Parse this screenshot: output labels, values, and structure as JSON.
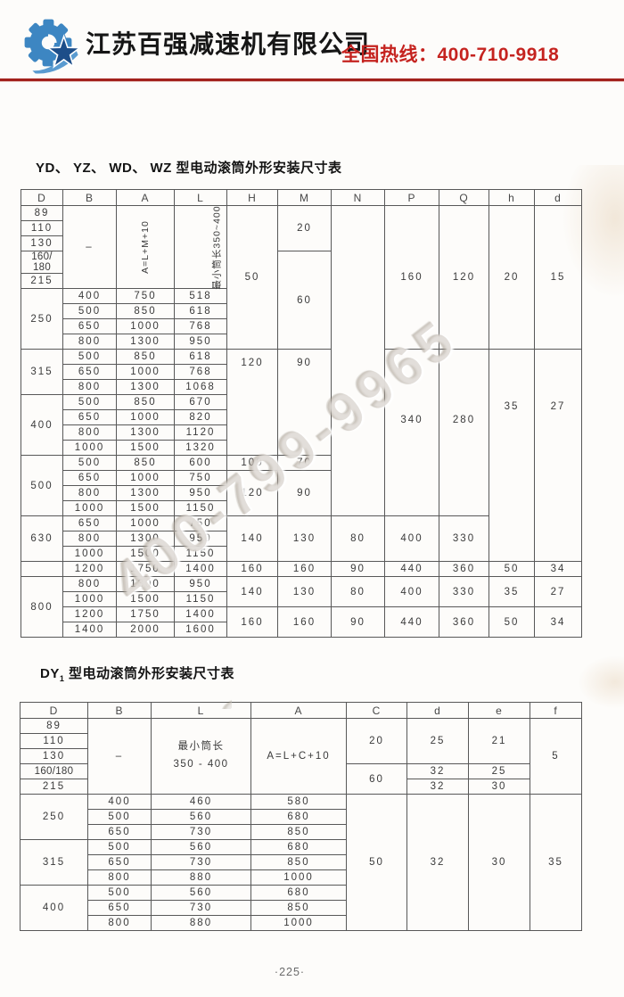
{
  "header": {
    "company_name": "江苏百强减速机有限公司",
    "hotline": "全国热线：400-710-9918",
    "logo": "gear-star-logo"
  },
  "watermark": {
    "text": "400-799-9965"
  },
  "footer": {
    "page_number": "·225·"
  },
  "table1_title": "YD、 YZ、 WD、 WZ  型电动滚筒外形安装尺寸表",
  "table2_title": {
    "prefix": "DY",
    "sub": "1",
    "rest": " 型电动滚筒外形安装尺寸表"
  },
  "table1": {
    "columns": [
      "D",
      "B",
      "A",
      "L",
      "H",
      "M",
      "N",
      "P",
      "Q",
      "h",
      "d"
    ],
    "rows": [
      [
        "89",
        {
          "t": "–",
          "rs": 5
        },
        {
          "t": "A=L+M+10",
          "rs": 5,
          "cls": "rot"
        },
        {
          "t": "最小筒长350~400",
          "rs": 5,
          "cls": "rot"
        },
        {
          "t": "50",
          "rs": 9
        },
        {
          "t": "20",
          "rs": 3
        },
        {
          "t": "",
          "rs": 20
        },
        {
          "t": "160",
          "rs": 9
        },
        {
          "t": "120",
          "rs": 9
        },
        {
          "t": "20",
          "rs": 9
        },
        {
          "t": "15",
          "rs": 9
        }
      ],
      [
        "110"
      ],
      [
        "130"
      ],
      [
        {
          "t": "160/ 180",
          "cls": "tight"
        },
        {
          "t": "60",
          "rs": 6
        }
      ],
      [
        "215"
      ],
      [
        {
          "t": "250",
          "rs": 4
        },
        "400",
        "750",
        "518"
      ],
      [
        "500",
        "850",
        "618"
      ],
      [
        "650",
        "1000",
        "768"
      ],
      [
        "800",
        "1300",
        "950"
      ],
      [
        {
          "t": "315",
          "rs": 3
        },
        "500",
        "850",
        "618",
        {
          "t": "120",
          "rs": 7,
          "cls": "vtop"
        },
        {
          "t": "90",
          "rs": 7,
          "cls": "vtop"
        },
        {
          "t": "340",
          "rs": 11,
          "cls": "vup"
        },
        {
          "t": "280",
          "rs": 11,
          "cls": "vup"
        },
        {
          "t": "35",
          "rs": 14,
          "cls": "vhigh"
        },
        {
          "t": "27",
          "rs": 14,
          "cls": "vhigh"
        }
      ],
      [
        "650",
        "1000",
        "768"
      ],
      [
        "800",
        "1300",
        "1068"
      ],
      [
        {
          "t": "400",
          "rs": 4
        },
        "500",
        "850",
        "670"
      ],
      [
        "650",
        "1000",
        "820"
      ],
      [
        "800",
        "1300",
        "1120"
      ],
      [
        "1000",
        "1500",
        "1320"
      ],
      [
        {
          "t": "500",
          "rs": 4
        },
        "500",
        "850",
        "600",
        "100",
        "70"
      ],
      [
        "650",
        "1000",
        "750",
        {
          "t": "120",
          "rs": 3
        },
        {
          "t": "90",
          "rs": 3
        }
      ],
      [
        "800",
        "1300",
        "950"
      ],
      [
        "1000",
        "1500",
        "1150"
      ],
      [
        {
          "t": "630",
          "rs": 3
        },
        "650",
        "1000",
        "750",
        {
          "t": "140",
          "rs": 3
        },
        {
          "t": "130",
          "rs": 3
        },
        {
          "t": "80",
          "rs": 3
        },
        {
          "t": "400",
          "rs": 3
        },
        {
          "t": "330",
          "rs": 3
        }
      ],
      [
        "800",
        "1300",
        "950"
      ],
      [
        "1000",
        "1500",
        "1150"
      ],
      [
        "",
        "1200",
        "1750",
        "1400",
        "160",
        "160",
        "90",
        "440",
        "360",
        "50",
        "34"
      ],
      [
        {
          "t": "800",
          "rs": 4
        },
        "800",
        "1300",
        "950",
        {
          "t": "140",
          "rs": 2
        },
        {
          "t": "130",
          "rs": 2
        },
        {
          "t": "80",
          "rs": 2
        },
        {
          "t": "400",
          "rs": 2
        },
        {
          "t": "330",
          "rs": 2
        },
        {
          "t": "35",
          "rs": 2
        },
        {
          "t": "27",
          "rs": 2
        }
      ],
      [
        "1000",
        "1500",
        "1150"
      ],
      [
        "1200",
        "1750",
        "1400",
        {
          "t": "160",
          "rs": 2
        },
        {
          "t": "160",
          "rs": 2
        },
        {
          "t": "90",
          "rs": 2
        },
        {
          "t": "440",
          "rs": 2
        },
        {
          "t": "360",
          "rs": 2
        },
        {
          "t": "50",
          "rs": 2
        },
        {
          "t": "34",
          "rs": 2
        }
      ],
      [
        "1400",
        "2000",
        "1600"
      ]
    ]
  },
  "table2": {
    "columns": [
      "D",
      "B",
      "L",
      "A",
      "C",
      "d",
      "e",
      "f"
    ],
    "rows": [
      [
        "89",
        {
          "t": "–",
          "rs": 5
        },
        {
          "t": "最小筒长\n350 - 400",
          "rs": 5,
          "cls": "two"
        },
        {
          "t": "A=L+C+10",
          "rs": 5
        },
        {
          "t": "20",
          "rs": 3
        },
        {
          "t": "25",
          "rs": 3
        },
        {
          "t": "21",
          "rs": 3
        },
        {
          "t": "5",
          "rs": 5
        }
      ],
      [
        "110"
      ],
      [
        "130"
      ],
      [
        {
          "t": "160/180",
          "cls": "tight"
        },
        {
          "t": "60",
          "rs": 2
        },
        "32",
        "25"
      ],
      [
        "215",
        "32",
        "30"
      ],
      [
        {
          "t": "250",
          "rs": 3
        },
        "400",
        "460",
        "580",
        {
          "t": "50",
          "rs": 9
        },
        {
          "t": "32",
          "rs": 9
        },
        {
          "t": "30",
          "rs": 9
        },
        {
          "t": "35",
          "rs": 9
        }
      ],
      [
        "500",
        "560",
        "680"
      ],
      [
        "650",
        "730",
        "850"
      ],
      [
        {
          "t": "315",
          "rs": 3
        },
        "500",
        "560",
        "680"
      ],
      [
        "650",
        "730",
        "850"
      ],
      [
        "800",
        "880",
        "1000"
      ],
      [
        {
          "t": "400",
          "rs": 3
        },
        "500",
        "560",
        "680"
      ],
      [
        "650",
        "730",
        "850"
      ],
      [
        "800",
        "880",
        "1000"
      ]
    ]
  }
}
